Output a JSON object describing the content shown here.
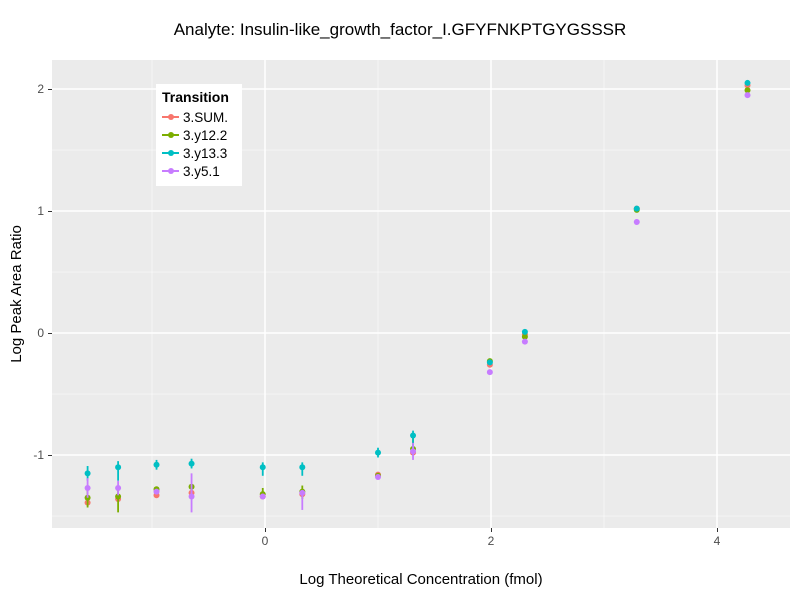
{
  "chart_data": {
    "type": "scatter",
    "title": "Analyte: Insulin-like_growth_factor_I.GFYFNKPTGYGSSSR",
    "xlabel": "Log Theoretical Concentration (fmol)",
    "ylabel": "Log Peak Area Ratio",
    "x_range": [
      -1.885,
      4.646
    ],
    "y_range": [
      -1.598,
      2.238
    ],
    "x_major_ticks": [
      0,
      2,
      4
    ],
    "x_minor_ticks": [
      -1,
      1,
      3
    ],
    "y_major_ticks": [
      -1,
      0,
      1,
      2
    ],
    "y_minor_ticks": [
      -1.5,
      -0.5,
      0.5,
      1.5
    ],
    "grid": true,
    "panel_color": "#EBEBEB",
    "grid_color": "#FFFFFF",
    "legend": {
      "title": "Transition",
      "position": "top-left-inside"
    },
    "x": [
      -1.57,
      -1.3,
      -0.96,
      -0.65,
      -0.02,
      0.33,
      1.0,
      1.31,
      1.99,
      2.3,
      3.29,
      4.27
    ],
    "series": [
      {
        "name": "3.SUM.",
        "color": "#F8766D",
        "y": [
          -1.39,
          -1.36,
          -1.33,
          -1.31,
          -1.34,
          -1.32,
          -1.16,
          -0.98,
          -0.26,
          -0.01,
          1.02,
          2.03
        ],
        "err": [
          null,
          null,
          null,
          null,
          null,
          null,
          null,
          null,
          null,
          null,
          null,
          null
        ]
      },
      {
        "name": "3.y12.2",
        "color": "#7CAE00",
        "y": [
          -1.35,
          -1.34,
          -1.28,
          -1.26,
          -1.32,
          -1.3,
          -1.17,
          -0.95,
          -0.23,
          -0.03,
          1.01,
          1.99
        ],
        "err": [
          [
            -1.43,
            -1.26
          ],
          [
            -1.47,
            -1.25
          ],
          null,
          null,
          [
            -1.36,
            -1.27
          ],
          [
            -1.36,
            -1.25
          ],
          null,
          [
            -0.98,
            -0.84
          ],
          null,
          null,
          null,
          null
        ]
      },
      {
        "name": "3.y13.3",
        "color": "#00BFC4",
        "y": [
          -1.15,
          -1.1,
          -1.08,
          -1.07,
          -1.1,
          -1.1,
          -0.98,
          -0.84,
          -0.24,
          0.01,
          1.02,
          2.05
        ],
        "err": [
          [
            -1.21,
            -1.09
          ],
          [
            -1.21,
            -1.05
          ],
          [
            -1.12,
            -1.04
          ],
          [
            -1.11,
            -1.03
          ],
          [
            -1.17,
            -1.06
          ],
          [
            -1.17,
            -1.06
          ],
          [
            -1.02,
            -0.94
          ],
          [
            -1.0,
            -0.8
          ],
          null,
          null,
          null,
          null
        ]
      },
      {
        "name": "3.y5.1",
        "color": "#C77CFF",
        "y": [
          -1.27,
          -1.27,
          -1.3,
          -1.34,
          -1.34,
          -1.31,
          -1.18,
          -0.97,
          -0.32,
          -0.07,
          0.91,
          1.95
        ],
        "err": [
          [
            -1.35,
            -1.19
          ],
          [
            -1.33,
            -1.21
          ],
          null,
          [
            -1.47,
            -1.15
          ],
          null,
          [
            -1.45,
            -1.29
          ],
          null,
          [
            -1.04,
            -0.9
          ],
          null,
          null,
          null,
          null
        ]
      }
    ]
  }
}
